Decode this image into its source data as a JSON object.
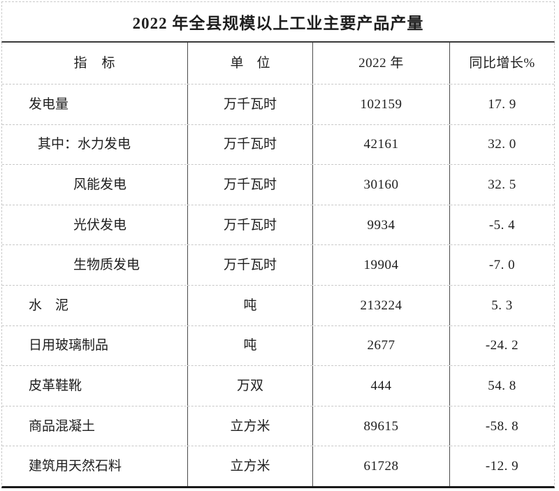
{
  "title": "2022 年全县规模以上工业主要产品产量",
  "style": {
    "background": "#ffffff",
    "text_color": "#1e1e1e",
    "solid_border_color": "#4c4c4c",
    "dashed_gridline_color": "#c9c9c9",
    "bottom_border_color": "#1a1a1a"
  },
  "table": {
    "columns": {
      "indicator": "指　标",
      "unit": "单　位",
      "year": "2022 年",
      "growth": "同比增长%"
    },
    "rows": [
      {
        "indicator": "发电量",
        "unit": "万千瓦时",
        "value": "102159",
        "growth": "17. 9"
      },
      {
        "indicator": "其中：水力发电",
        "unit": "万千瓦时",
        "value": "42161",
        "growth": "32. 0"
      },
      {
        "indicator": "风能发电",
        "unit": "万千瓦时",
        "value": "30160",
        "growth": "32. 5"
      },
      {
        "indicator": "光伏发电",
        "unit": "万千瓦时",
        "value": "9934",
        "growth": "-5. 4"
      },
      {
        "indicator": "生物质发电",
        "unit": "万千瓦时",
        "value": "19904",
        "growth": "-7. 0"
      },
      {
        "indicator": "水　泥",
        "unit": "吨",
        "value": "213224",
        "growth": "5. 3"
      },
      {
        "indicator": "日用玻璃制品",
        "unit": "吨",
        "value": "2677",
        "growth": "-24. 2"
      },
      {
        "indicator": "皮革鞋靴",
        "unit": "万双",
        "value": "444",
        "growth": "54. 8"
      },
      {
        "indicator": "商品混凝土",
        "unit": "立方米",
        "value": "89615",
        "growth": "-58. 8"
      },
      {
        "indicator": "建筑用天然石料",
        "unit": "立方米",
        "value": "61728",
        "growth": "-12. 9"
      }
    ]
  }
}
